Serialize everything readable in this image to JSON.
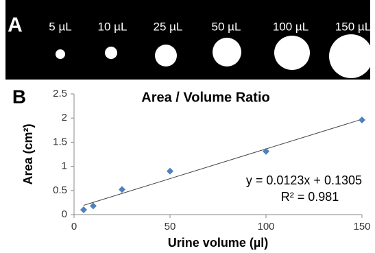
{
  "panel_a": {
    "label": "A",
    "labels": [
      "5 µL",
      "10 µL",
      "25 µL",
      "50 µL",
      "100 µL",
      "150 µL"
    ]
  },
  "chart_data": {
    "type": "scatter",
    "panel_label": "B",
    "title": "Area / Volume Ratio",
    "x_label": "Urine volume (µl)",
    "y_label": "Area (cm²)",
    "x": [
      5,
      10,
      25,
      50,
      100,
      150
    ],
    "values": [
      0.1,
      0.18,
      0.52,
      0.9,
      1.31,
      1.96
    ],
    "color": "#4f81bd",
    "xlim": [
      0,
      150
    ],
    "xticks": [
      0,
      50,
      100,
      150
    ],
    "ylim": [
      0,
      2.5
    ],
    "yticks": [
      0,
      0.5,
      1,
      1.5,
      2,
      2.5
    ],
    "trendline": {
      "slope": 0.0123,
      "intercept": 0.1305,
      "label": "y = 0.0123x + 0.1305",
      "r2_label": "R² = 0.981"
    }
  }
}
